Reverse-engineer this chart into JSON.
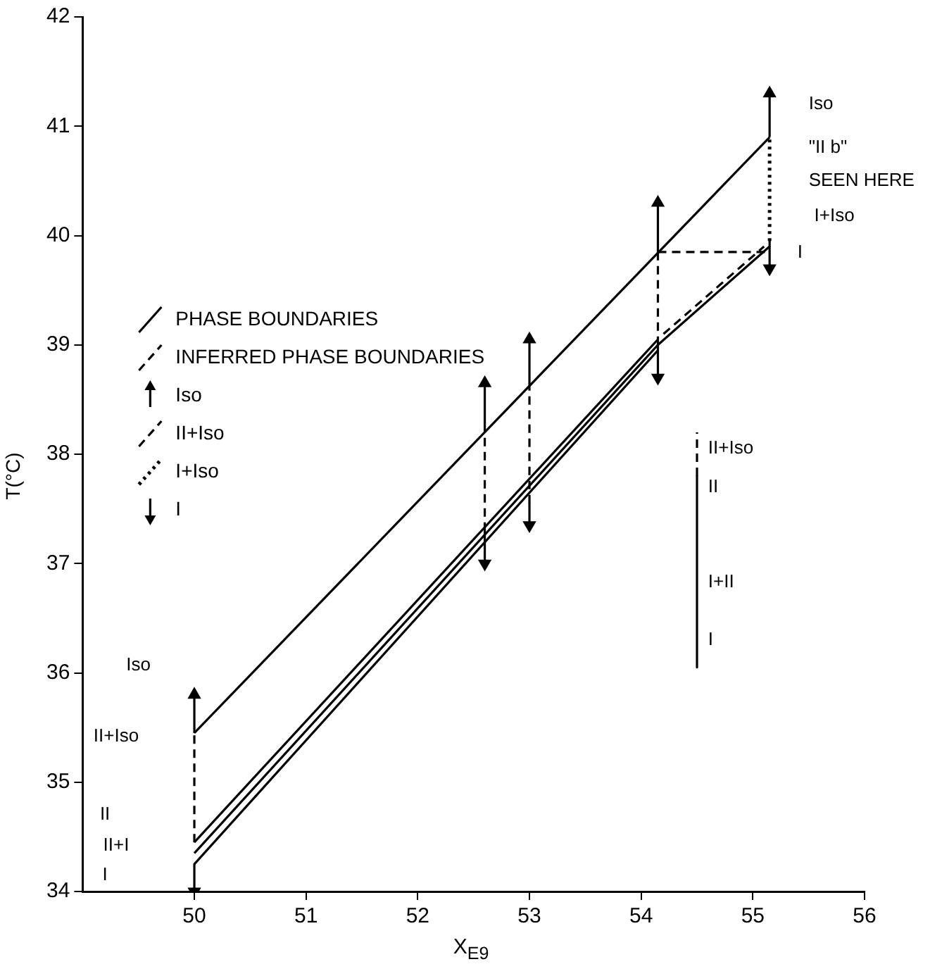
{
  "chart_data": {
    "type": "line",
    "xlabel": "X$_{E9}$",
    "ylabel": "T(°C)",
    "xlim": [
      49,
      56
    ],
    "ylim": [
      34,
      42
    ],
    "xticks": [
      50,
      51,
      52,
      53,
      54,
      55,
      56
    ],
    "yticks": [
      34,
      35,
      36,
      37,
      38,
      39,
      40,
      41,
      42
    ],
    "grid": false,
    "legend": "top left",
    "marker": "none",
    "series": [
      {
        "name": "PHASE BOUNDARIES",
        "color": "#000000",
        "x": [
          50,
          55.15
        ],
        "values": [
          35.45,
          40.9
        ],
        "line_style": "solid"
      },
      {
        "color": "#000000",
        "x": [
          50,
          54.15
        ],
        "values": [
          34.45,
          39.05
        ],
        "line_style": "solid"
      },
      {
        "color": "#000000",
        "x": [
          50,
          54.15,
          55.15
        ],
        "values": [
          34.35,
          39.0,
          39.9
        ],
        "line_style": "solid"
      },
      {
        "color": "#000000",
        "x": [
          50,
          54.15
        ],
        "values": [
          34.25,
          38.95
        ],
        "line_style": "solid"
      },
      {
        "name": "INFERRED PHASE BOUNDARIES",
        "color": "#000000",
        "x": [
          54.15,
          55.15
        ],
        "values": [
          39.85,
          39.85
        ],
        "line_style": "dashed"
      },
      {
        "color": "#000000",
        "x": [
          54.2,
          55.1
        ],
        "values": [
          39.1,
          39.9
        ],
        "line_style": "dashed"
      },
      {
        "name": "Iso",
        "color": "#000000",
        "x": [
          50,
          50
        ],
        "values": [
          35.45,
          35.8
        ],
        "line_style": "solid",
        "marker": "triangle"
      },
      {
        "color": "#000000",
        "x": [
          52.6,
          52.6
        ],
        "values": [
          38.2,
          38.65
        ],
        "line_style": "solid",
        "marker": "triangle"
      },
      {
        "color": "#000000",
        "x": [
          53,
          53
        ],
        "values": [
          38.6,
          39.05
        ],
        "line_style": "solid",
        "marker": "triangle"
      },
      {
        "color": "#000000",
        "x": [
          54.15,
          54.15
        ],
        "values": [
          39.85,
          40.3
        ],
        "line_style": "solid",
        "marker": "triangle"
      },
      {
        "color": "#000000",
        "x": [
          55.15,
          55.15
        ],
        "values": [
          40.9,
          41.3
        ],
        "line_style": "solid",
        "marker": "triangle"
      },
      {
        "name": "II+Iso",
        "color": "#000000",
        "x": [
          50,
          50
        ],
        "values": [
          34.45,
          35.45
        ],
        "line_style": "dashed"
      },
      {
        "color": "#000000",
        "x": [
          52.6,
          52.6
        ],
        "values": [
          37.3,
          38.2
        ],
        "line_style": "dashed"
      },
      {
        "color": "#000000",
        "x": [
          53,
          53
        ],
        "values": [
          37.55,
          38.6
        ],
        "line_style": "dashed"
      },
      {
        "color": "#000000",
        "x": [
          54.15,
          54.15
        ],
        "values": [
          39.0,
          39.85
        ],
        "line_style": "dashed"
      },
      {
        "name": "I+Iso",
        "color": "#000000",
        "x": [
          55.15,
          55.15
        ],
        "values": [
          39.95,
          40.9
        ],
        "line_style": "dotted"
      },
      {
        "name": "I",
        "color": "#000000",
        "x": [
          50,
          50
        ],
        "values": [
          34.25,
          34.0
        ],
        "line_style": "solid",
        "marker": "triangle"
      },
      {
        "color": "#000000",
        "x": [
          52.6,
          52.6
        ],
        "values": [
          37.3,
          37.0
        ],
        "line_style": "solid",
        "marker": "triangle"
      },
      {
        "color": "#000000",
        "x": [
          53,
          53
        ],
        "values": [
          37.55,
          37.35
        ],
        "line_style": "solid",
        "marker": "triangle"
      },
      {
        "color": "#000000",
        "x": [
          54.15,
          54.15
        ],
        "values": [
          39.0,
          38.7
        ],
        "line_style": "solid",
        "marker": "triangle"
      },
      {
        "color": "#000000",
        "x": [
          55.15,
          55.15
        ],
        "values": [
          39.95,
          39.7
        ],
        "line_style": "solid",
        "marker": "triangle"
      },
      {
        "color": "#000000",
        "x": [
          54.5,
          54.5
        ],
        "values": [
          37.8,
          38.2
        ],
        "line_style": "dashed"
      },
      {
        "color": "#000000",
        "x": [
          54.5,
          54.5,
          54.5
        ],
        "values": [
          37.8,
          37.05,
          36.05
        ],
        "line_style": "solid"
      }
    ],
    "annotations": [
      "Iso",
      "\"II b\"",
      "SEEN HERE",
      "I+Iso",
      "I",
      "Iso",
      "II+Iso",
      "II",
      "II+I",
      "I",
      "II+Iso",
      "II",
      "I+II",
      "I"
    ]
  }
}
